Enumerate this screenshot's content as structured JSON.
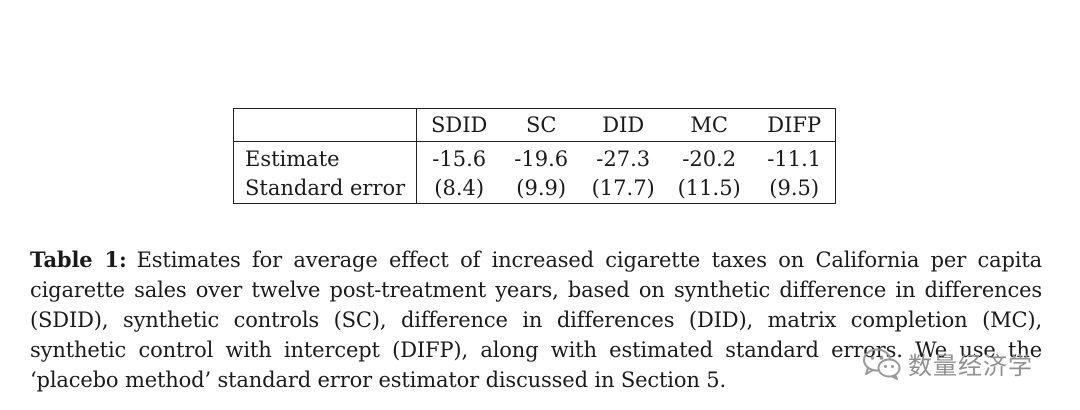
{
  "table": {
    "columns": [
      "",
      "SDID",
      "SC",
      "DID",
      "MC",
      "DIFP"
    ],
    "rows": [
      {
        "label": "Estimate",
        "values": [
          "-15.6",
          "-19.6",
          "-27.3",
          "-20.2",
          "-11.1"
        ]
      },
      {
        "label": "Standard error",
        "values": [
          "(8.4)",
          "(9.9)",
          "(17.7)",
          "(11.5)",
          "(9.5)"
        ]
      }
    ]
  },
  "caption": {
    "label": "Table 1:",
    "text": "Estimates for average effect of increased cigarette taxes on California per capita cigarette sales over twelve post-treatment years, based on synthetic difference in differences (SDID), synthetic controls (SC), difference in differences (DID), matrix completion (MC), synthetic control with intercept (DIFP), along with estimated standard errors. We use the ‘placebo method’ standard error estimator discussed in Section 5."
  },
  "watermark": {
    "icon": "wechat-icon",
    "text": "数量经济学",
    "color": "#9a9a9a"
  }
}
